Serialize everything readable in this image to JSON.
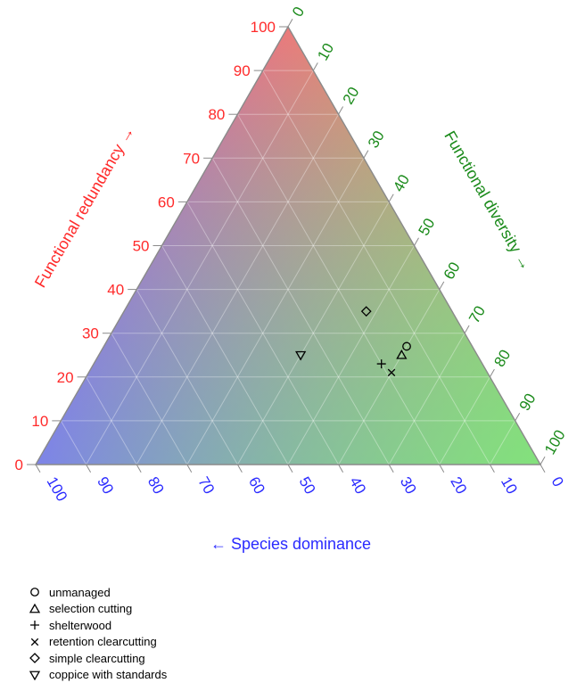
{
  "chart_data": {
    "type": "scatter",
    "subtype": "ternary",
    "grid": true,
    "axes": {
      "left": {
        "label": "Functional redundancy →",
        "color": "#ff2a2a",
        "ticks": [
          "0",
          "10",
          "20",
          "30",
          "40",
          "50",
          "60",
          "70",
          "80",
          "90",
          "100"
        ]
      },
      "right": {
        "label": "Functional diversity →",
        "color": "#1a8a1a",
        "ticks": [
          "0",
          "10",
          "20",
          "30",
          "40",
          "50",
          "60",
          "70",
          "80",
          "90",
          "100"
        ]
      },
      "bottom": {
        "label": "← Species dominance",
        "color": "#2a2aff",
        "ticks": [
          "0",
          "10",
          "20",
          "30",
          "40",
          "50",
          "60",
          "70",
          "80",
          "90",
          "100"
        ]
      }
    },
    "corner_colors": {
      "top": "#f07878",
      "left": "#7a80f0",
      "right": "#80e878"
    },
    "series": [
      {
        "name": "unmanaged",
        "marker": "circle",
        "redundancy": 27,
        "diversity": 60,
        "dominance": 13
      },
      {
        "name": "selection cutting",
        "marker": "triangle-up",
        "redundancy": 25,
        "diversity": 60,
        "dominance": 15
      },
      {
        "name": "shelterwood",
        "marker": "plus",
        "redundancy": 23,
        "diversity": 57,
        "dominance": 20
      },
      {
        "name": "retention clearcutting",
        "marker": "cross",
        "redundancy": 21,
        "diversity": 60,
        "dominance": 19
      },
      {
        "name": "simple clearcutting",
        "marker": "diamond",
        "redundancy": 35,
        "diversity": 48,
        "dominance": 17
      },
      {
        "name": "coppice with standards",
        "marker": "triangle-down",
        "redundancy": 25,
        "diversity": 40,
        "dominance": 35
      }
    ]
  }
}
